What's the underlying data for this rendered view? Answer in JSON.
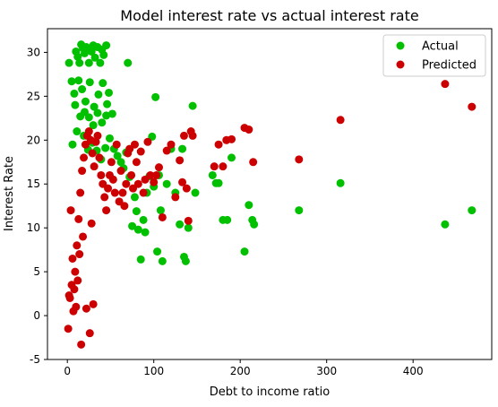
{
  "chart_data": {
    "type": "scatter",
    "title": "Model interest rate vs actual interest rate",
    "xlabel": "Debt to income ratio",
    "ylabel": "Interest Rate",
    "xlim": [
      -23,
      491
    ],
    "ylim": [
      -5,
      32.7
    ],
    "xticks": [
      0,
      100,
      200,
      300,
      400
    ],
    "yticks": [
      -5,
      0,
      5,
      10,
      15,
      20,
      25,
      30
    ],
    "grid": false,
    "legend_position": "top-right",
    "series": [
      {
        "name": "Actual",
        "color": "#00c000",
        "x": [
          2,
          5,
          8,
          10,
          12,
          14,
          16,
          18,
          20,
          22,
          25,
          28,
          30,
          32,
          35,
          38,
          40,
          42,
          45,
          48,
          9,
          13,
          17,
          21,
          26,
          31,
          36,
          41,
          46,
          52,
          15,
          20,
          25,
          30,
          35,
          40,
          45,
          6,
          11,
          19,
          24,
          29,
          34,
          39,
          44,
          49,
          54,
          58,
          62,
          65,
          68,
          70,
          72,
          75,
          78,
          80,
          82,
          85,
          88,
          90,
          92,
          95,
          98,
          100,
          102,
          104,
          106,
          108,
          110,
          115,
          120,
          125,
          130,
          133,
          135,
          137,
          140,
          145,
          148,
          168,
          172,
          175,
          180,
          185,
          190,
          205,
          210,
          214,
          216,
          268,
          316,
          437,
          468
        ],
        "y": [
          28.8,
          26.7,
          25.3,
          30.1,
          29.5,
          28.8,
          30.9,
          30.5,
          29.9,
          30.6,
          28.8,
          30.1,
          30.8,
          29.4,
          30.6,
          28.8,
          30.3,
          29.7,
          30.8,
          25.4,
          24.0,
          26.8,
          25.8,
          24.4,
          26.6,
          23.8,
          25.2,
          26.5,
          24.1,
          23.0,
          22.7,
          23.2,
          22.6,
          21.7,
          23.1,
          22.0,
          22.8,
          19.5,
          21.0,
          20.5,
          18.9,
          19.7,
          18.8,
          17.8,
          19.1,
          20.2,
          19.0,
          18.2,
          17.5,
          16.8,
          18.6,
          28.8,
          15.8,
          10.2,
          13.5,
          11.9,
          9.8,
          6.4,
          10.9,
          9.5,
          14.0,
          15.9,
          20.4,
          14.7,
          24.9,
          7.3,
          16.0,
          12.0,
          6.2,
          15.0,
          19.0,
          14.0,
          10.4,
          19.0,
          6.7,
          6.2,
          10.0,
          23.9,
          14.0,
          16.0,
          15.1,
          15.1,
          10.9,
          10.9,
          18.0,
          7.3,
          12.6,
          10.9,
          10.4,
          12.0,
          15.1,
          10.4,
          12.0
        ]
      },
      {
        "name": "Predicted",
        "color": "#cc0000",
        "x": [
          1,
          3,
          5,
          7,
          9,
          11,
          13,
          15,
          17,
          19,
          21,
          23,
          25,
          27,
          29,
          31,
          33,
          35,
          37,
          39,
          41,
          43,
          45,
          47,
          49,
          51,
          53,
          55,
          57,
          60,
          62,
          64,
          66,
          68,
          70,
          72,
          74,
          76,
          78,
          80,
          82,
          85,
          88,
          90,
          93,
          96,
          100,
          103,
          106,
          110,
          115,
          120,
          125,
          130,
          133,
          135,
          138,
          140,
          143,
          145,
          170,
          175,
          180,
          184,
          190,
          205,
          210,
          215,
          268,
          316,
          437,
          468,
          16,
          26,
          2,
          10,
          22,
          8,
          30,
          12,
          6,
          18,
          14,
          28,
          4
        ],
        "y": [
          -1.5,
          2.0,
          3.5,
          0.5,
          5.0,
          8.0,
          11.0,
          14.0,
          16.5,
          18.0,
          19.5,
          20.5,
          21.0,
          20.0,
          18.5,
          17.0,
          19.8,
          20.5,
          18.0,
          16.0,
          15.0,
          13.5,
          12.0,
          14.5,
          16.0,
          17.5,
          15.5,
          14.0,
          19.5,
          13.0,
          16.5,
          14.0,
          12.5,
          15.0,
          18.5,
          19.0,
          16.0,
          14.5,
          19.5,
          17.5,
          15.0,
          18.7,
          14.0,
          15.5,
          19.8,
          16.0,
          15.2,
          16.0,
          16.9,
          11.2,
          18.8,
          19.5,
          13.5,
          17.7,
          15.2,
          20.5,
          14.5,
          10.8,
          21.0,
          20.5,
          17.0,
          19.5,
          17.0,
          20.0,
          20.1,
          21.4,
          21.2,
          17.5,
          17.8,
          22.3,
          26.4,
          23.8,
          -3.3,
          -2.0,
          2.3,
          1.0,
          0.8,
          3.0,
          1.3,
          4.0,
          6.5,
          9.0,
          7.0,
          10.5,
          12.0
        ]
      }
    ]
  }
}
